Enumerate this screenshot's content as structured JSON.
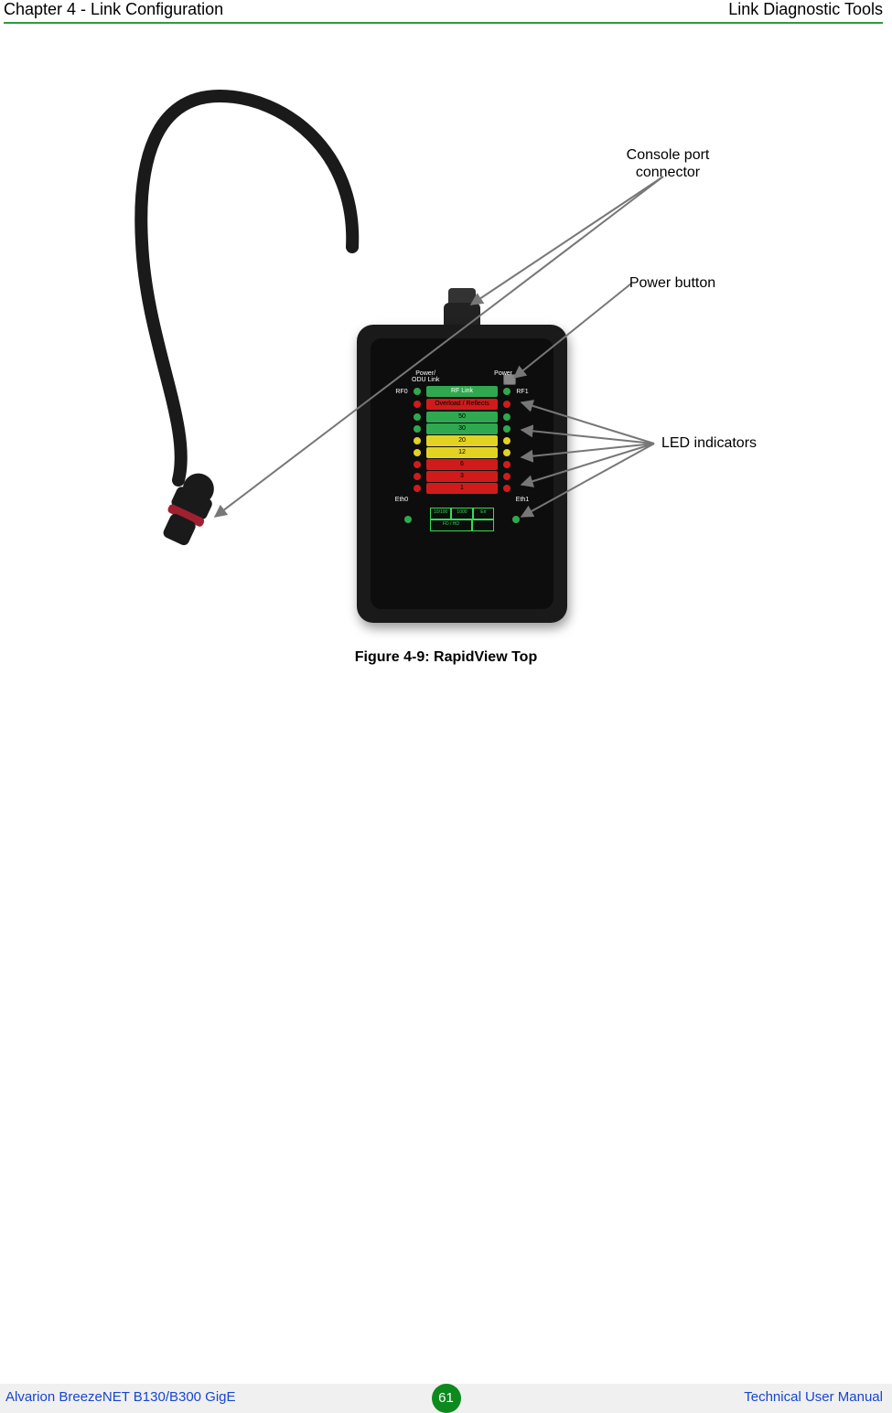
{
  "header": {
    "left": "Chapter 4 - Link Configuration",
    "right": "Link Diagnostic Tools",
    "rule_color": "#2e9a3a"
  },
  "figure": {
    "caption": "Figure 4-9: RapidView Top",
    "callouts": {
      "console": "Console port connector",
      "power": "Power button",
      "leds": "LED indicators"
    },
    "device": {
      "top_labels": {
        "left": "Power/\nODU Link",
        "right": "Power"
      },
      "rf_left": "RF0",
      "rf_right": "RF1",
      "rf_bar": {
        "text": "RF Link",
        "bg": "#2fa84f"
      },
      "overload_bar": {
        "text": "Overload / Reflects",
        "bg": "#d11b1b",
        "led": "#d11b1b"
      },
      "rows": [
        {
          "text": "50",
          "bg": "#2fa84f",
          "led": "#2fa84f"
        },
        {
          "text": "30",
          "bg": "#2fa84f",
          "led": "#2fa84f"
        },
        {
          "text": "20",
          "bg": "#e3d222",
          "led": "#e3d222"
        },
        {
          "text": "12",
          "bg": "#e3d222",
          "led": "#e3d222"
        },
        {
          "text": "6",
          "bg": "#d11b1b",
          "led": "#d11b1b"
        },
        {
          "text": "3",
          "bg": "#d11b1b",
          "led": "#d11b1b"
        },
        {
          "text": "1",
          "bg": "#d11b1b",
          "led": "#d11b1b"
        }
      ],
      "eth_left": "Eth0",
      "eth_right": "Eth1",
      "eth_cells": [
        "10/100",
        "1000",
        "En",
        "FD / HD",
        "",
        ""
      ],
      "led_colors": {
        "green": "#2fa84f",
        "yellow": "#e3d222",
        "red": "#d11b1b"
      }
    },
    "cable_color": "#1a1a1a",
    "connector_color": "#1a1a1a",
    "connector_ring": "#a02030"
  },
  "footer": {
    "left": "Alvarion BreezeNET B130/B300 GigE",
    "right": "Technical User Manual",
    "page": "61",
    "bg": "#f0f0f0",
    "text_color": "#1746d1",
    "badge_bg": "#0c8a1e"
  }
}
